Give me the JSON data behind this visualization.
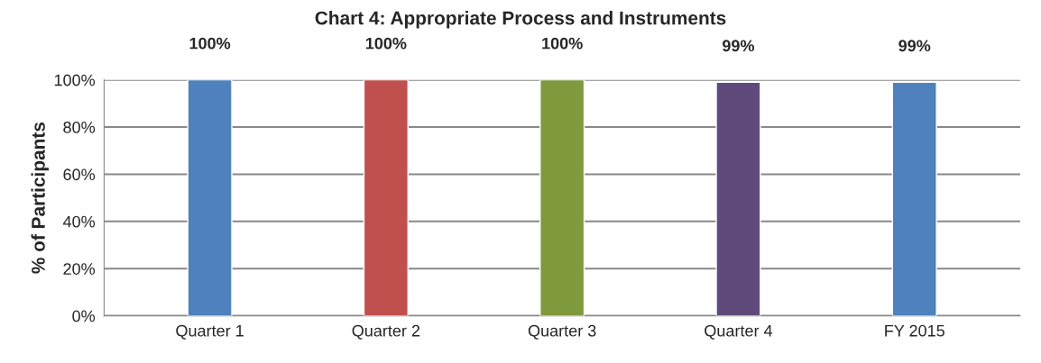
{
  "chart_data": {
    "type": "bar",
    "title": "Chart 4: Appropriate Process and Instruments",
    "ylabel": "% of Participants",
    "categories": [
      "Quarter 1",
      "Quarter 2",
      "Quarter 3",
      "Quarter 4",
      "FY 2015"
    ],
    "values": [
      100,
      100,
      100,
      99,
      99
    ],
    "colors": [
      "#4f81bd",
      "#c0504d",
      "#7f9a3c",
      "#604a7b",
      "#4f81bd"
    ],
    "value_labels": [
      "100%",
      "100%",
      "100%",
      "99%",
      "99%"
    ],
    "ylim": [
      0,
      100
    ],
    "yticks": [
      {
        "value": 0,
        "label": "0%"
      },
      {
        "value": 20,
        "label": "20%"
      },
      {
        "value": 40,
        "label": "40%"
      },
      {
        "value": 60,
        "label": "60%"
      },
      {
        "value": 80,
        "label": "80%"
      },
      {
        "value": 100,
        "label": "100%"
      }
    ],
    "grid": "y"
  }
}
